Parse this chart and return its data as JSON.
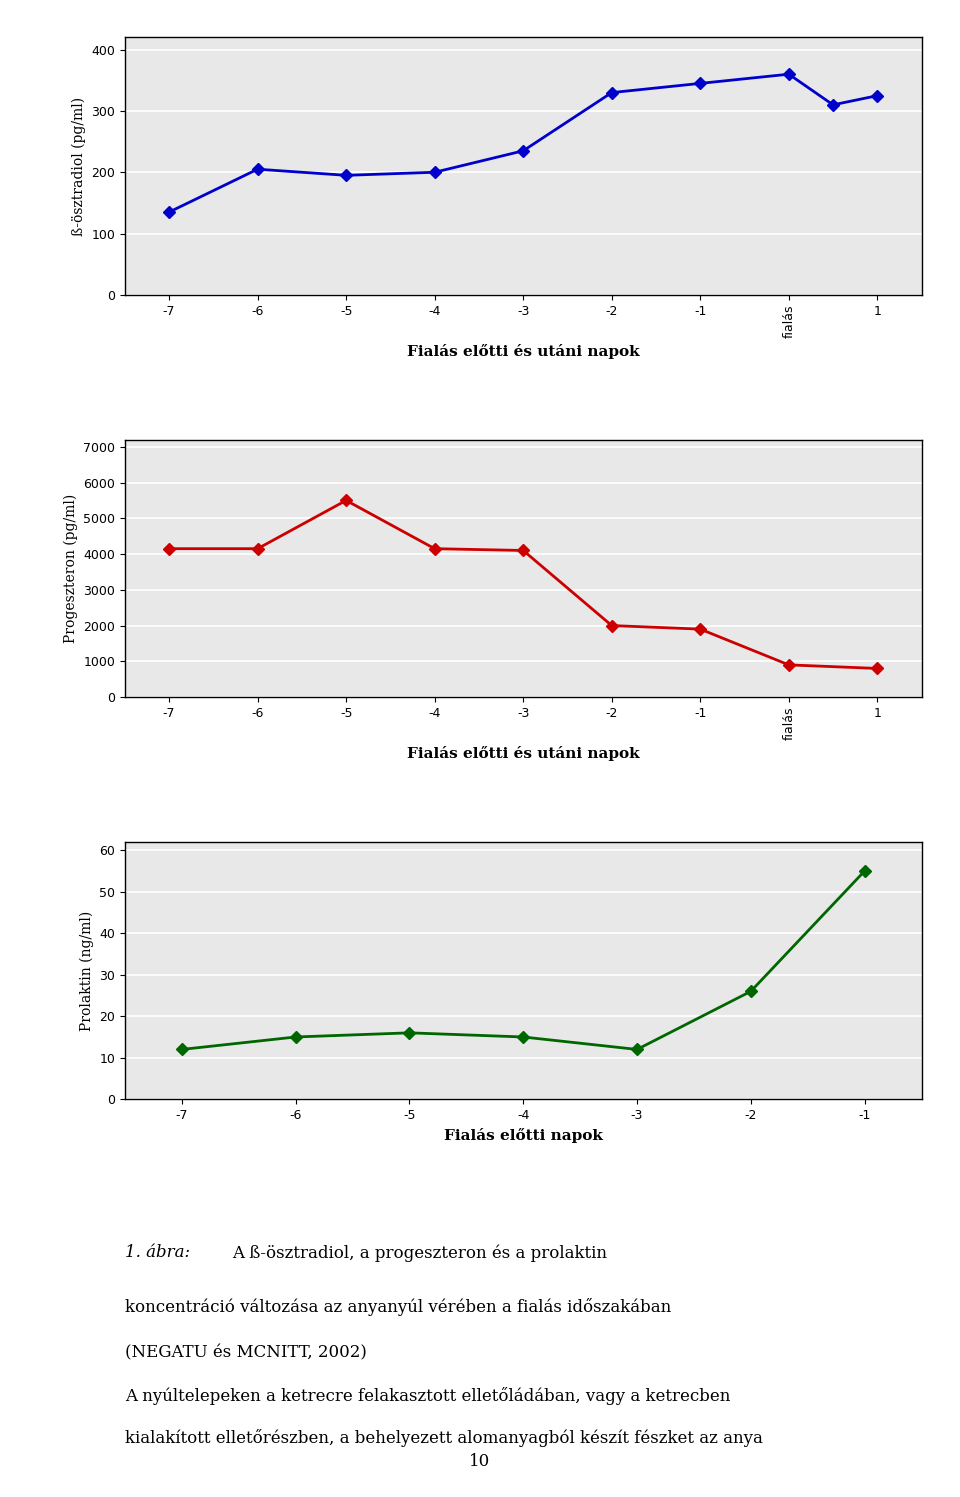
{
  "chart1": {
    "x_positions": [
      0,
      1,
      2,
      3,
      4,
      5,
      6,
      7,
      7.5,
      8
    ],
    "y_values": [
      135,
      205,
      195,
      200,
      235,
      330,
      345,
      360,
      310,
      325
    ],
    "xtick_positions": [
      0,
      1,
      2,
      3,
      4,
      5,
      6,
      7,
      8
    ],
    "xtick_labels": [
      "-7",
      "-6",
      "-5",
      "-4",
      "-3",
      "-2",
      "-1",
      "fialás",
      "1"
    ],
    "yticks": [
      0,
      100,
      200,
      300,
      400
    ],
    "ylim": [
      0,
      420
    ],
    "xlim": [
      -0.5,
      8.5
    ],
    "color": "#0000CC",
    "ylabel": "ß-ösztradiol (pg/ml)",
    "xlabel": "Fialás előtti és utáni napok"
  },
  "chart2": {
    "x_positions": [
      0,
      1,
      2,
      3,
      4,
      5,
      6,
      7,
      8
    ],
    "y_values": [
      4150,
      4150,
      5500,
      4150,
      4100,
      2000,
      1900,
      900,
      800
    ],
    "xtick_positions": [
      0,
      1,
      2,
      3,
      4,
      5,
      6,
      7,
      8
    ],
    "xtick_labels": [
      "-7",
      "-6",
      "-5",
      "-4",
      "-3",
      "-2",
      "-1",
      "fialás",
      "1"
    ],
    "yticks": [
      0,
      1000,
      2000,
      3000,
      4000,
      5000,
      6000,
      7000
    ],
    "ylim": [
      0,
      7200
    ],
    "xlim": [
      -0.5,
      8.5
    ],
    "color": "#CC0000",
    "ylabel": "Progeszteron (pg/ml)",
    "xlabel": "Fialás előtti és utáni napok"
  },
  "chart3": {
    "x_positions": [
      0,
      1,
      2,
      3,
      4,
      5,
      6
    ],
    "y_values": [
      12,
      15,
      16,
      15,
      12,
      26,
      55
    ],
    "xtick_positions": [
      0,
      1,
      2,
      3,
      4,
      5,
      6
    ],
    "xtick_labels": [
      "-7",
      "-6",
      "-5",
      "-4",
      "-3",
      "-2",
      "-1"
    ],
    "yticks": [
      0,
      10,
      20,
      30,
      40,
      50,
      60
    ],
    "ylim": [
      0,
      62
    ],
    "xlim": [
      -0.5,
      6.5
    ],
    "color": "#006600",
    "ylabel": "Prolaktin (ng/ml)",
    "xlabel": "Fialás előtti napok"
  },
  "caption_label": "1. ábra:",
  "caption_rest1": "A ß-ösztradiol, a progeszteron és a prolaktin",
  "caption_line2": "koncentráció változása az anyanyúl vérében a fialás időszakában",
  "caption_line3": "(NEGATU és MCNITT, 2002)",
  "body_line1": "A nyúltelepeken a ketrecre felakasztott elletőládában, vagy a ketrecben",
  "body_line2": "kialakított elletőrészben, a behelyezett alomanyagból készít fészket az anya",
  "page_number": "10",
  "plot_bg": "#E8E8E8",
  "grid_color": "#FFFFFF"
}
